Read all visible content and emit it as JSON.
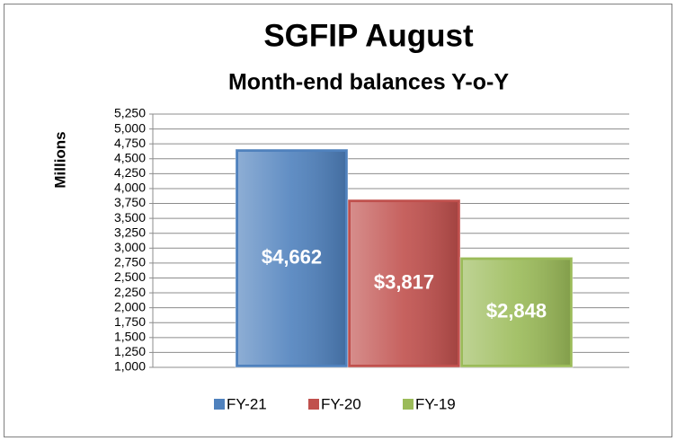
{
  "chart_data": {
    "type": "bar",
    "title": "SGFIP August",
    "subtitle": "Month-end balances Y-o-Y",
    "y_label": "Millions",
    "series": [
      {
        "name": "FY-21",
        "color": "#4f81bd",
        "values": [
          4662
        ],
        "value_labels": [
          "$4,662"
        ]
      },
      {
        "name": "FY-20",
        "color": "#c0504d",
        "values": [
          3817
        ],
        "value_labels": [
          "$3,817"
        ]
      },
      {
        "name": "FY-19",
        "color": "#9bbb59",
        "values": [
          2848
        ],
        "value_labels": [
          "$2,848"
        ]
      }
    ],
    "ylim": [
      1000,
      5250
    ],
    "yticks": [
      {
        "value": 1000,
        "label": "1,000"
      },
      {
        "value": 1250,
        "label": "1,250"
      },
      {
        "value": 1500,
        "label": "1,500"
      },
      {
        "value": 1750,
        "label": "1,750"
      },
      {
        "value": 2000,
        "label": "2,000"
      },
      {
        "value": 2250,
        "label": "2,250"
      },
      {
        "value": 2500,
        "label": "2,500"
      },
      {
        "value": 2750,
        "label": "2,750"
      },
      {
        "value": 3000,
        "label": "3,000"
      },
      {
        "value": 3250,
        "label": "3,250"
      },
      {
        "value": 3500,
        "label": "3,500"
      },
      {
        "value": 3750,
        "label": "3,750"
      },
      {
        "value": 4000,
        "label": "4,000"
      },
      {
        "value": 4250,
        "label": "4,250"
      },
      {
        "value": 4500,
        "label": "4,500"
      },
      {
        "value": 4750,
        "label": "4,750"
      },
      {
        "value": 5000,
        "label": "5,000"
      },
      {
        "value": 5250,
        "label": "5,250"
      }
    ],
    "grid": true,
    "legend": "bottom"
  }
}
